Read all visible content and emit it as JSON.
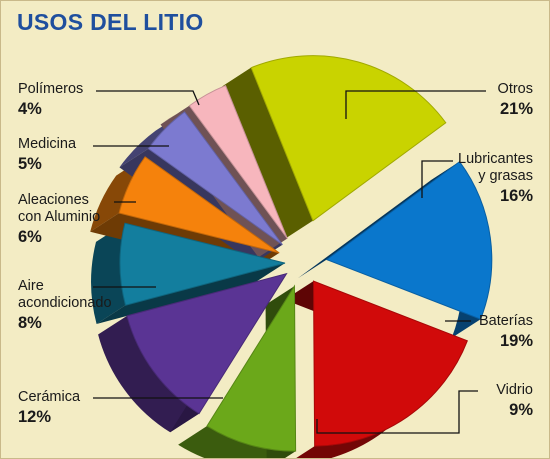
{
  "title": "USOS DEL LITIO",
  "chart_data": {
    "type": "pie",
    "title": "USOS DEL LITIO",
    "unit": "%",
    "slices": [
      {
        "label": "Otros",
        "value": 21,
        "value_label": "21%",
        "color": "#c9d300"
      },
      {
        "label": "Lubricantes y grasas",
        "value": 16,
        "value_label": "16%",
        "color": "#0a77cc"
      },
      {
        "label": "Baterías",
        "value": 19,
        "value_label": "19%",
        "color": "#d10a0a"
      },
      {
        "label": "Vidrio",
        "value": 9,
        "value_label": "9%",
        "color": "#6ba81a"
      },
      {
        "label": "Cerámica",
        "value": 12,
        "value_label": "12%",
        "color": "#5a3494"
      },
      {
        "label": "Aire acondicionado",
        "value": 8,
        "value_label": "8%",
        "color": "#137e9e"
      },
      {
        "label": "Aleaciones con Aluminio",
        "value": 6,
        "value_label": "6%",
        "color": "#f5820c"
      },
      {
        "label": "Medicina",
        "value": 5,
        "value_label": "5%",
        "color": "#7c7ad0"
      },
      {
        "label": "Polímeros",
        "value": 4,
        "value_label": "4%",
        "color": "#f7b6bd"
      }
    ]
  },
  "labels": {
    "otros": {
      "name": "Otros",
      "pct": "21%"
    },
    "lubricantes": {
      "name1": "Lubricantes",
      "name2": "y grasas",
      "pct": "16%"
    },
    "baterias": {
      "name": "Baterías",
      "pct": "19%"
    },
    "vidrio": {
      "name": "Vidrio",
      "pct": "9%"
    },
    "ceramica": {
      "name": "Cerámica",
      "pct": "12%"
    },
    "aire": {
      "name1": "Aire",
      "name2": "acondicionado",
      "pct": "8%"
    },
    "aleaciones": {
      "name1": "Aleaciones",
      "name2": "con Aluminio",
      "pct": "6%"
    },
    "medicina": {
      "name": "Medicina",
      "pct": "5%"
    },
    "polimeros": {
      "name": "Polímeros",
      "pct": "4%"
    }
  }
}
